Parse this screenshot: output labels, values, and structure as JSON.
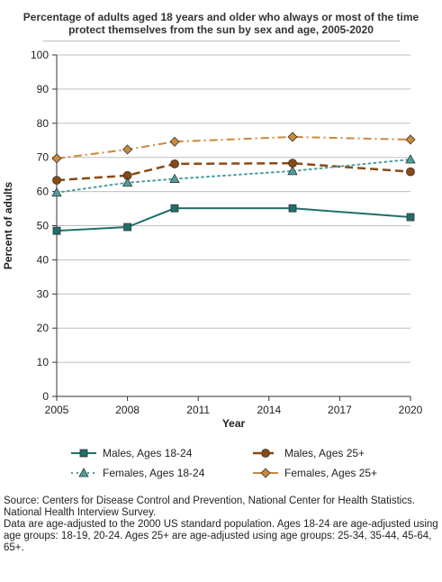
{
  "chart_data": {
    "type": "line",
    "title": "Percentage of adults aged 18 years and older who always or most of the time protect themselves from the sun by sex and age, 2005-2020",
    "xlabel": "Year",
    "ylabel": "Percent of adults",
    "xlim": [
      2005,
      2020
    ],
    "ylim": [
      0,
      100
    ],
    "xticks": [
      2005,
      2008,
      2011,
      2014,
      2017,
      2020
    ],
    "yticks": [
      0,
      10,
      20,
      30,
      40,
      50,
      60,
      70,
      80,
      90,
      100
    ],
    "grid": true,
    "legend_position": "bottom",
    "series": [
      {
        "name": "Males, Ages 18-24",
        "color": "#1f6f6b",
        "dash": "solid",
        "marker": "square",
        "x": [
          2005,
          2008,
          2010,
          2015,
          2020
        ],
        "values": [
          48.5,
          49.6,
          55.1,
          55.1,
          52.5
        ]
      },
      {
        "name": "Males, Ages 25+",
        "color": "#8a4a12",
        "dash": "longdash",
        "marker": "circle",
        "x": [
          2005,
          2008,
          2010,
          2015,
          2020
        ],
        "values": [
          63.3,
          64.7,
          68.1,
          68.3,
          65.8
        ]
      },
      {
        "name": "Females, Ages 18-24",
        "color": "#4f9ea0",
        "dash": "dotted",
        "marker": "triangle",
        "x": [
          2005,
          2008,
          2010,
          2015,
          2020
        ],
        "values": [
          59.7,
          62.6,
          63.7,
          66.0,
          69.4
        ]
      },
      {
        "name": "Females, Ages 25+",
        "color": "#c98a3c",
        "dash": "dashdot",
        "marker": "diamond",
        "x": [
          2005,
          2008,
          2010,
          2015,
          2020
        ],
        "values": [
          69.7,
          72.3,
          74.6,
          76.0,
          75.2
        ]
      }
    ]
  },
  "source": {
    "line1": "Source: Centers for Disease Control and Prevention, National Center for Health Statistics. National Health Interview Survey.",
    "line2": "Data are age-adjusted to the 2000 US standard population. Ages 18-24 are age-adjusted using age groups: 18-19, 20-24. Ages 25+ are age-adjusted using age groups: 25-34, 35-44, 45-64, 65+."
  }
}
